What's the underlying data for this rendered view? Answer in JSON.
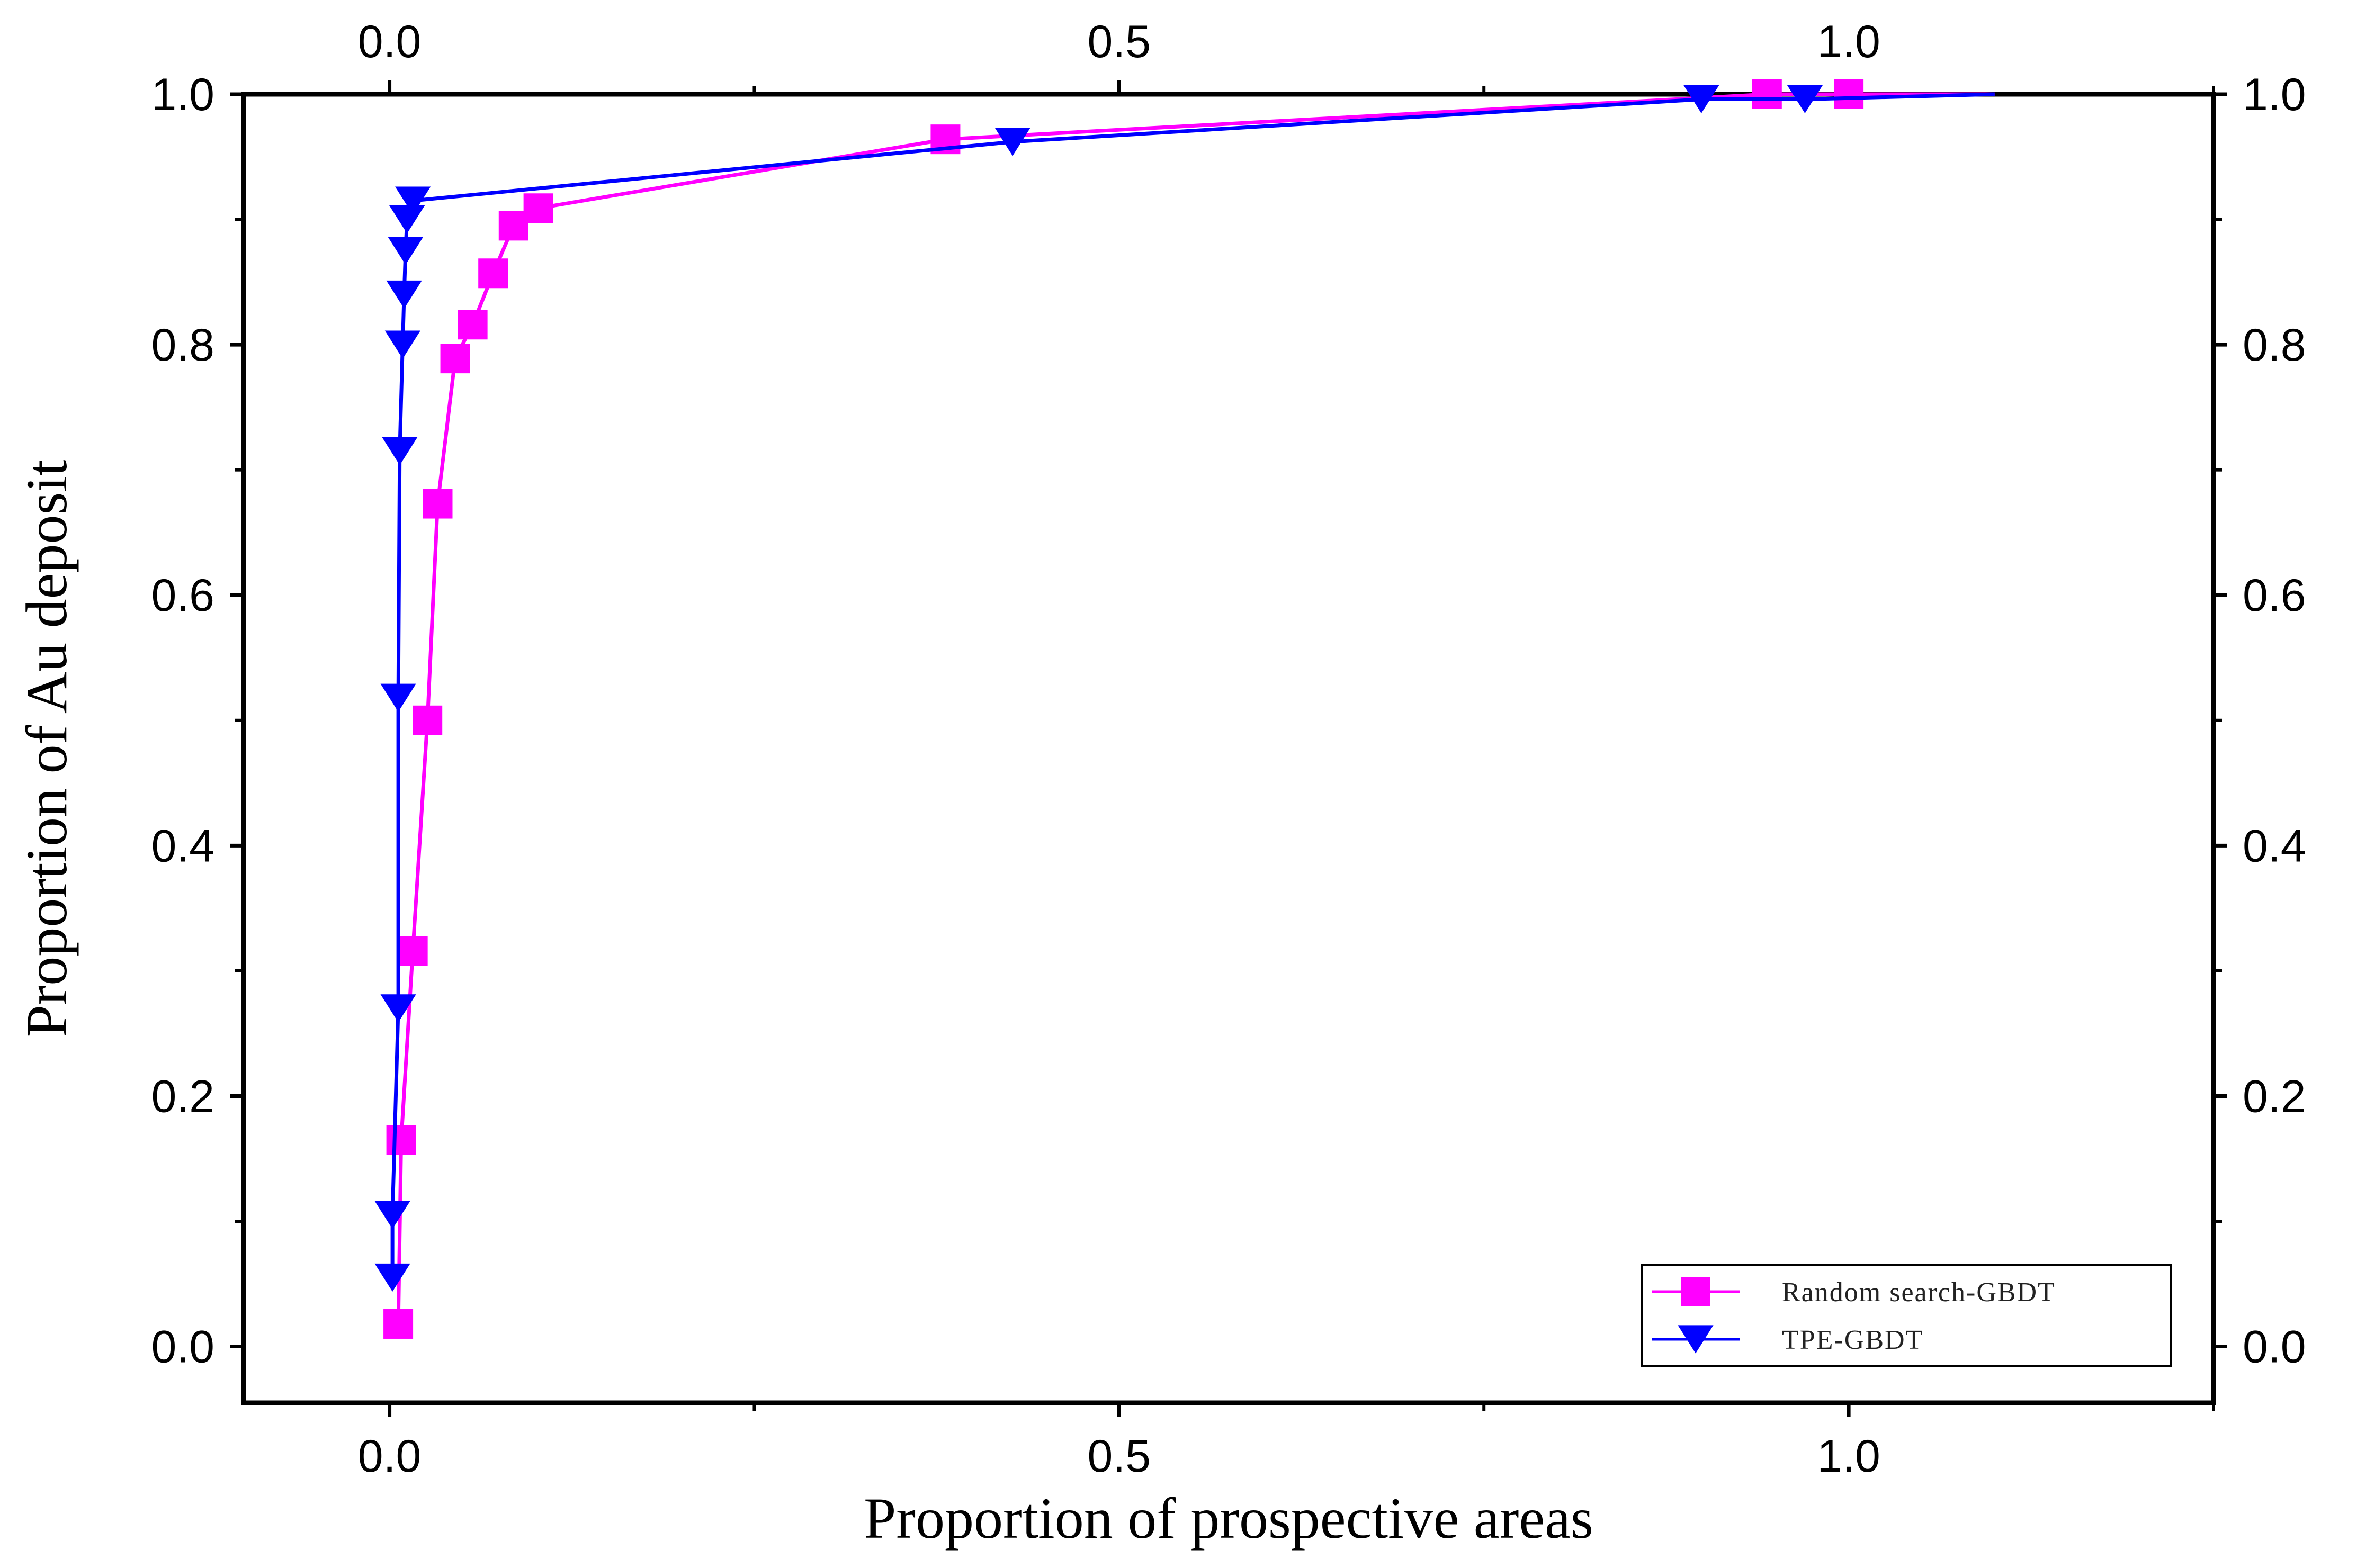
{
  "chart_data": {
    "type": "line",
    "title": "",
    "xlabel": "Proportion of prospective areas",
    "ylabel": "Proportion of Au deposit",
    "xlim": [
      -0.1,
      1.25
    ],
    "ylim": [
      -0.045,
      1.0
    ],
    "x_ticks": [
      0.0,
      0.5,
      1.0
    ],
    "x_tick_labels": [
      "0.0",
      "0.5",
      "1.0"
    ],
    "y_ticks": [
      0.0,
      0.2,
      0.4,
      0.6,
      0.8,
      1.0
    ],
    "y_tick_labels": [
      "0.0",
      "0.2",
      "0.4",
      "0.6",
      "0.8",
      "1.0"
    ],
    "top_x_tick_labels": [
      "0.0",
      "0.5",
      "1.0"
    ],
    "right_y_tick_labels": [
      "0.0",
      "0.2",
      "0.4",
      "0.6",
      "0.8",
      "1.0"
    ],
    "grid": false,
    "legend_position": "bottom-right",
    "series": [
      {
        "name": "Random search-GBDT",
        "color": "#ff00ff",
        "marker": "square",
        "x": [
          0.006,
          0.008,
          0.016,
          0.026,
          0.033,
          0.045,
          0.057,
          0.071,
          0.085,
          0.102,
          0.381,
          0.944,
          1.0
        ],
        "y": [
          0.018,
          0.165,
          0.316,
          0.5,
          0.673,
          0.789,
          0.816,
          0.857,
          0.895,
          0.909,
          0.964,
          1.0,
          1.0
        ]
      },
      {
        "name": "TPE-GBDT",
        "color": "#0000ff",
        "marker": "triangle-down",
        "x": [
          0.002,
          0.002,
          0.006,
          0.006,
          0.007,
          0.009,
          0.01,
          0.011,
          0.012,
          0.016,
          0.427,
          0.899,
          0.97
        ],
        "y": [
          0.055,
          0.105,
          0.27,
          0.518,
          0.715,
          0.8,
          0.84,
          0.875,
          0.9,
          0.915,
          0.962,
          0.996,
          0.996
        ]
      }
    ]
  }
}
